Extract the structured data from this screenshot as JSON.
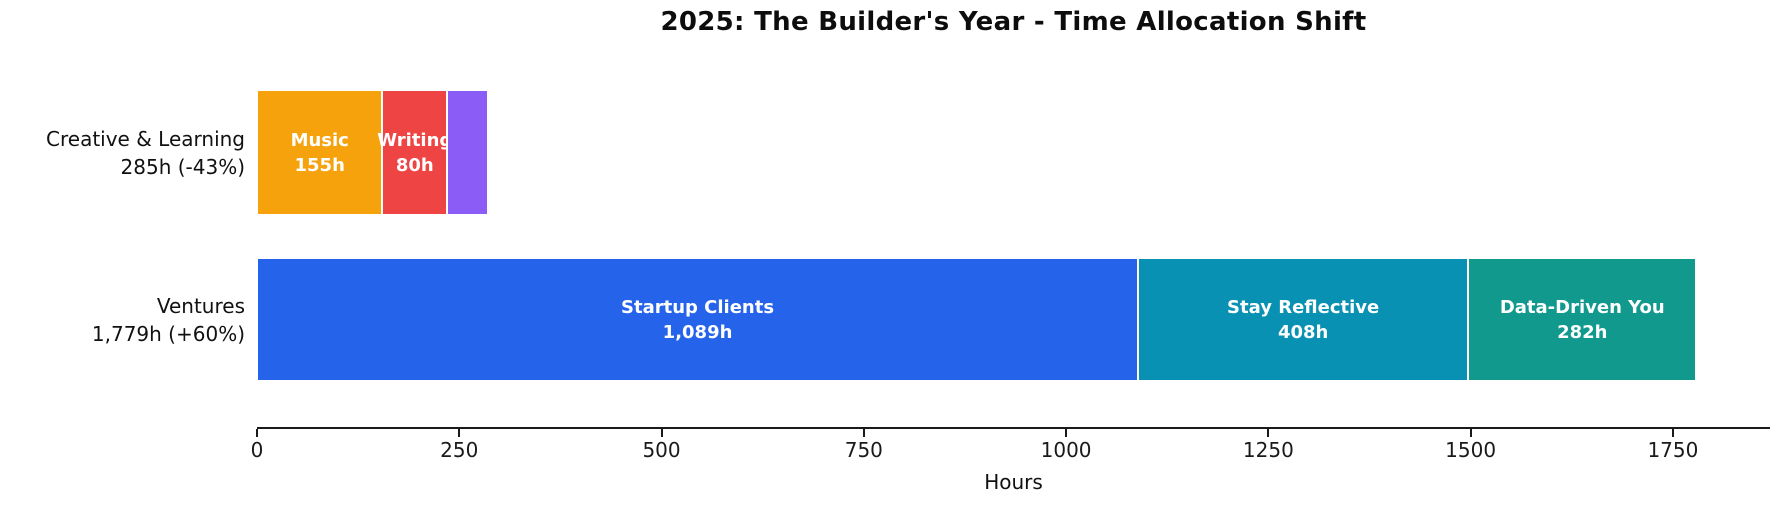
{
  "title": "2025: The Builder's Year - Time Allocation Shift",
  "axis": {
    "xlabel": "Hours",
    "tick_labels": [
      "0",
      "250",
      "500",
      "750",
      "1000",
      "1250",
      "1500",
      "1750"
    ]
  },
  "chart_data": {
    "type": "bar",
    "orientation": "horizontal",
    "stacked": true,
    "title": "2025: The Builder's Year - Time Allocation Shift",
    "xlabel": "Hours",
    "xlim": [
      0,
      1870
    ],
    "xticks": [
      0,
      250,
      500,
      750,
      1000,
      1250,
      1500,
      1750
    ],
    "grid": false,
    "rows": [
      {
        "category": "Creative & Learning",
        "category_label": "Creative & Learning\n285h (-43%)",
        "total_hours": 285,
        "change": "-43%",
        "segments": [
          {
            "label": "Music",
            "value": 155,
            "bar_text": "Music\n155h",
            "color": "#F5A20D"
          },
          {
            "label": "Writing",
            "value": 80,
            "bar_text": "Writing\n80h",
            "color": "#EF4444"
          },
          {
            "label": "",
            "value": 50,
            "bar_text": "",
            "color": "#8B5CF6"
          }
        ]
      },
      {
        "category": "Ventures",
        "category_label": "Ventures\n1,779h (+60%)",
        "total_hours": 1779,
        "change": "+60%",
        "segments": [
          {
            "label": "Startup Clients",
            "value": 1089,
            "bar_text": "Startup Clients\n1,089h",
            "color": "#2563EB"
          },
          {
            "label": "Stay Reflective",
            "value": 408,
            "bar_text": "Stay Reflective\n408h",
            "color": "#0891B2"
          },
          {
            "label": "Data-Driven You",
            "value": 282,
            "bar_text": "Data-Driven You\n282h",
            "color": "#11998E"
          }
        ]
      }
    ]
  }
}
